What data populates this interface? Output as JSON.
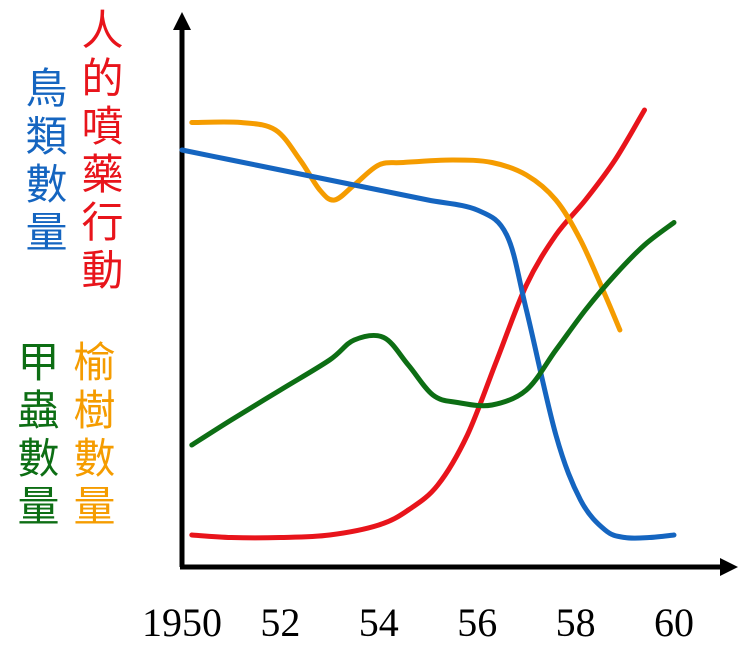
{
  "chart_data": {
    "type": "line",
    "x": [
      1950,
      1951,
      1952,
      1953,
      1954,
      1955,
      1956,
      1957,
      1958,
      1959,
      1960
    ],
    "tick_labels": [
      "1950",
      "52",
      "54",
      "56",
      "58",
      "60"
    ],
    "xlim": [
      1950,
      1960.8
    ],
    "ylim": [
      0,
      100
    ],
    "grid": false,
    "legend": "left, vertical labels",
    "series": [
      {
        "name": "鳥類數量",
        "color": "#1565c0",
        "points": [
          [
            1950,
            82
          ],
          [
            1951,
            80
          ],
          [
            1952,
            78
          ],
          [
            1953,
            76
          ],
          [
            1954,
            74
          ],
          [
            1955,
            72
          ],
          [
            1956,
            70
          ],
          [
            1956.6,
            65
          ],
          [
            1957,
            50
          ],
          [
            1957.6,
            25
          ],
          [
            1958.1,
            12
          ],
          [
            1958.6,
            6
          ],
          [
            1959,
            4.5
          ],
          [
            1959.5,
            4.5
          ],
          [
            1960,
            5
          ]
        ]
      },
      {
        "name": "人的噴藥行動",
        "color": "#e8141b",
        "points": [
          [
            1950.2,
            5
          ],
          [
            1951,
            4.5
          ],
          [
            1952,
            4.5
          ],
          [
            1953,
            5
          ],
          [
            1954,
            7
          ],
          [
            1954.6,
            10
          ],
          [
            1955.2,
            15
          ],
          [
            1955.8,
            25
          ],
          [
            1956.4,
            40
          ],
          [
            1957,
            55
          ],
          [
            1957.6,
            65
          ],
          [
            1958.2,
            72
          ],
          [
            1958.8,
            80
          ],
          [
            1959.4,
            90
          ]
        ]
      },
      {
        "name": "甲蟲數量",
        "color": "#0d6e14",
        "points": [
          [
            1950.2,
            23
          ],
          [
            1951,
            28
          ],
          [
            1952,
            34
          ],
          [
            1953,
            40
          ],
          [
            1953.5,
            44
          ],
          [
            1954.1,
            44.5
          ],
          [
            1954.6,
            39
          ],
          [
            1955.1,
            33
          ],
          [
            1955.6,
            31.5
          ],
          [
            1956.3,
            31
          ],
          [
            1957,
            34
          ],
          [
            1957.6,
            42
          ],
          [
            1958.2,
            50
          ],
          [
            1958.8,
            57
          ],
          [
            1959.4,
            63
          ],
          [
            1960,
            67.5
          ]
        ]
      },
      {
        "name": "榆樹數量",
        "color": "#f59c00",
        "points": [
          [
            1950.2,
            87.5
          ],
          [
            1951.2,
            87.5
          ],
          [
            1951.9,
            86
          ],
          [
            1952.4,
            80
          ],
          [
            1952.8,
            74
          ],
          [
            1953.1,
            72
          ],
          [
            1953.5,
            75
          ],
          [
            1954,
            79
          ],
          [
            1954.5,
            79.5
          ],
          [
            1955.5,
            80
          ],
          [
            1956.3,
            79.5
          ],
          [
            1957,
            77
          ],
          [
            1957.6,
            72
          ],
          [
            1958.1,
            64
          ],
          [
            1958.6,
            53
          ],
          [
            1958.9,
            46
          ]
        ]
      }
    ],
    "legend_labels": {
      "birds": "鳥類數量",
      "spraying": "人的噴藥行動",
      "beetles": "甲蟲數量",
      "elms": "榆樹數量"
    },
    "legend_colors": {
      "birds": "#1565c0",
      "spraying": "#e8141b",
      "beetles": "#0d6e14",
      "elms": "#f59c00"
    }
  }
}
